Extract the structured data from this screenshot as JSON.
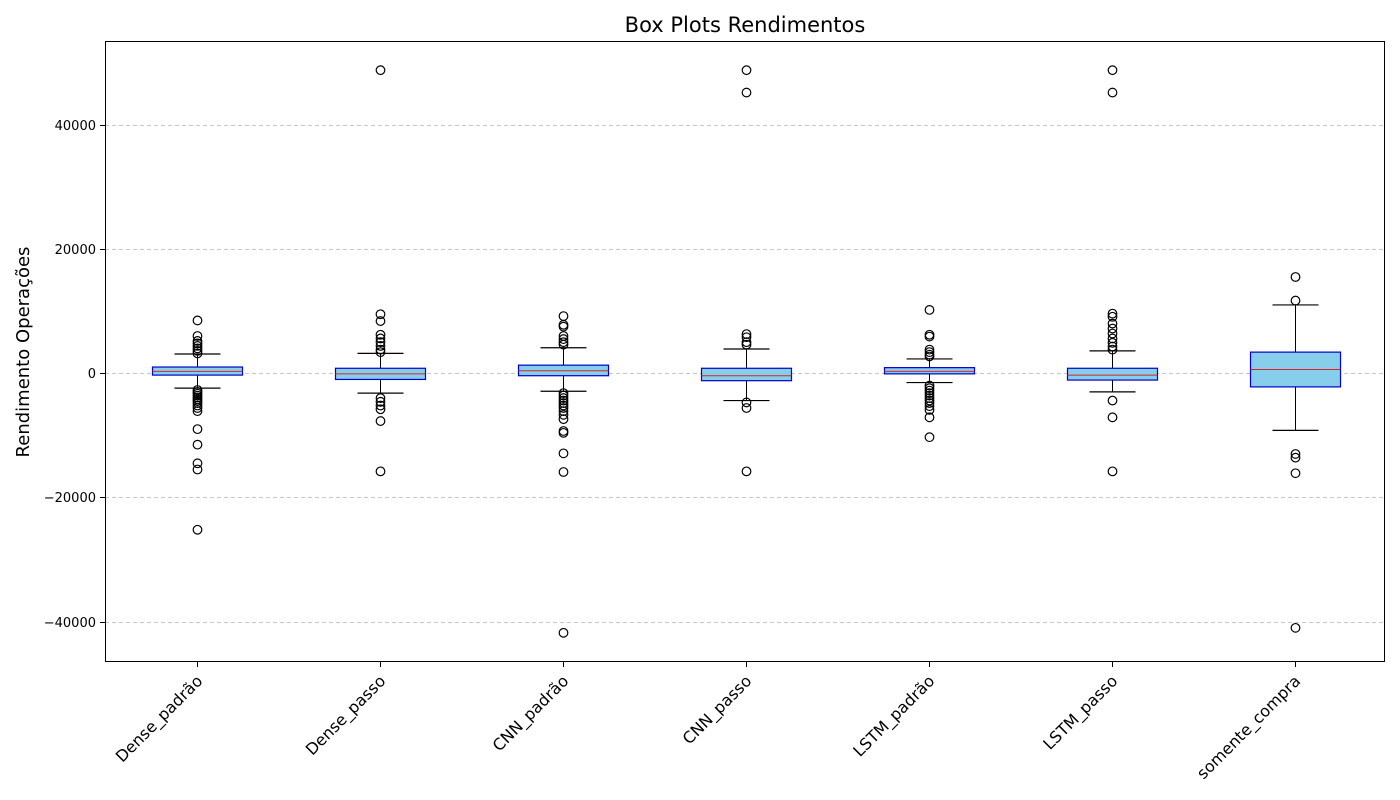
{
  "chart_data": {
    "type": "box",
    "title": "Box Plots Rendimentos",
    "xlabel": "",
    "ylabel": "Rendimento Operações",
    "ylim": [
      -46500,
      53500
    ],
    "yticks": [
      -40000,
      -20000,
      0,
      20000,
      40000
    ],
    "ytick_labels": [
      "−40000",
      "−20000",
      "0",
      "20000",
      "40000"
    ],
    "grid": "y-dashed",
    "colors": {
      "box_fill": "#87ceeb",
      "box_edge": "#0000cd",
      "median": "#d62728",
      "whisker": "#000000",
      "grid": "#c8c8c8"
    },
    "categories": [
      "Dense_padrão",
      "Dense_passo",
      "CNN_padrão",
      "CNN_passo",
      "LSTM_padrão",
      "LSTM_passo",
      "somente_compra"
    ],
    "boxes": [
      {
        "q1": -300,
        "median": 300,
        "q3": 1000,
        "whisker_low": -2400,
        "whisker_high": 3100,
        "outliers": [
          8500,
          6000,
          5200,
          4800,
          4400,
          4000,
          3600,
          3200,
          -2700,
          -3000,
          -3300,
          -3600,
          -3900,
          -4200,
          -4500,
          -4800,
          -5200,
          -5600,
          -6100,
          -9000,
          -11500,
          -14500,
          -15500,
          -25200
        ]
      },
      {
        "q1": -1000,
        "median": -100,
        "q3": 800,
        "whisker_low": -3200,
        "whisker_high": 3200,
        "outliers": [
          48800,
          9500,
          8400,
          6200,
          5600,
          5000,
          4400,
          3800,
          3400,
          -4000,
          -4600,
          -5200,
          -5800,
          -7700,
          -15800
        ]
      },
      {
        "q1": -400,
        "median": 400,
        "q3": 1300,
        "whisker_low": -2900,
        "whisker_high": 4100,
        "outliers": [
          9200,
          7800,
          7500,
          6000,
          5500,
          5000,
          4600,
          -3200,
          -3600,
          -4000,
          -4400,
          -4800,
          -5200,
          -5600,
          -6100,
          -6700,
          -7400,
          -9300,
          -9600,
          -12900,
          -15900,
          -41800
        ]
      },
      {
        "q1": -1200,
        "median": -400,
        "q3": 800,
        "whisker_low": -4400,
        "whisker_high": 3900,
        "outliers": [
          48800,
          45200,
          6300,
          5800,
          5000,
          4600,
          -4700,
          -5600,
          -15800
        ]
      },
      {
        "q1": -100,
        "median": 300,
        "q3": 900,
        "whisker_low": -1500,
        "whisker_high": 2300,
        "outliers": [
          10200,
          6200,
          5900,
          3800,
          3400,
          3000,
          2700,
          -2000,
          -2400,
          -2800,
          -3200,
          -3600,
          -4000,
          -4400,
          -4800,
          -5300,
          -5900,
          -7100,
          -10300
        ]
      },
      {
        "q1": -1100,
        "median": -300,
        "q3": 800,
        "whisker_low": -3000,
        "whisker_high": 3600,
        "outliers": [
          48800,
          45200,
          9600,
          9100,
          8000,
          7200,
          6400,
          5600,
          4900,
          4300,
          3800,
          -4400,
          -7100,
          -15800
        ]
      },
      {
        "q1": -2200,
        "median": 600,
        "q3": 3400,
        "whisker_low": -9200,
        "whisker_high": 11000,
        "outliers": [
          15500,
          11700,
          -13000,
          -13600,
          -16100,
          -41000
        ]
      }
    ]
  }
}
